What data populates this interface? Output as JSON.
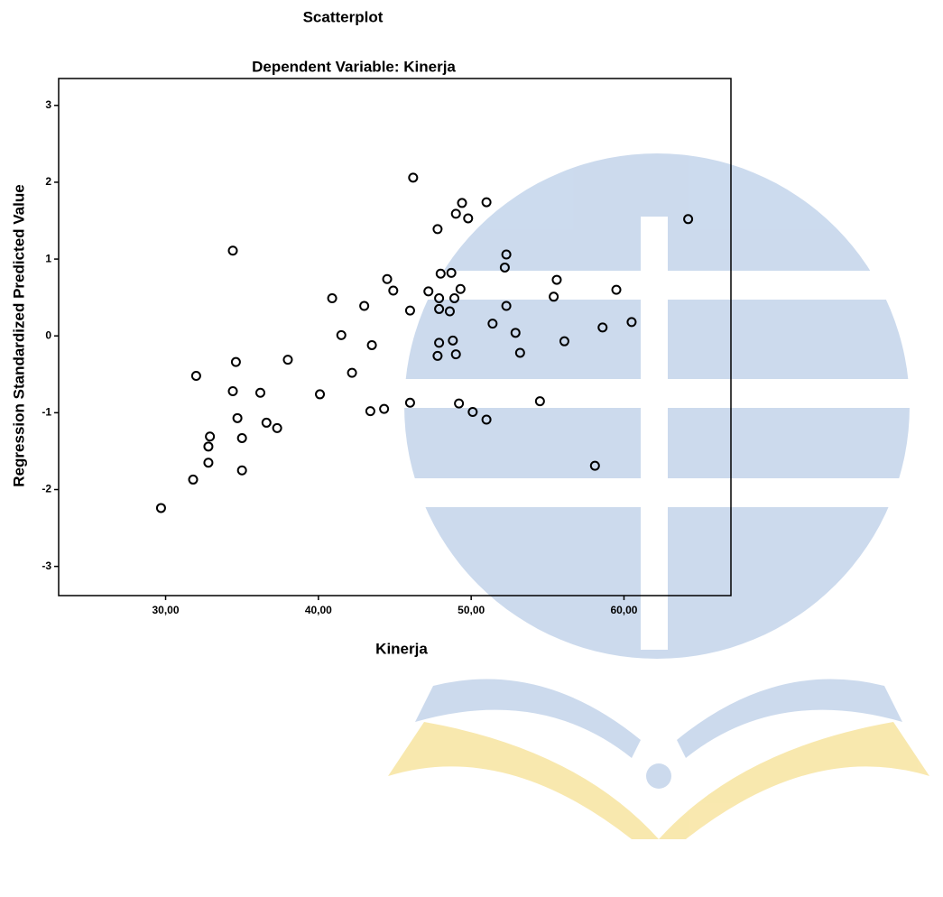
{
  "chart_data": {
    "type": "scatter",
    "title": "Scatterplot",
    "subtitle": "Dependent Variable: Kinerja",
    "x_label": "Kinerja",
    "y_label": "Regression Standardized Predicted Value",
    "color": "#000000",
    "x": [
      29.7,
      31.8,
      32.0,
      32.8,
      32.8,
      32.9,
      34.4,
      34.4,
      34.6,
      34.7,
      35.0,
      35.0,
      36.2,
      36.6,
      37.3,
      38.0,
      40.1,
      40.9,
      41.5,
      42.2,
      43.0,
      43.4,
      43.5,
      44.3,
      44.5,
      44.9,
      46.0,
      46.0,
      46.2,
      47.2,
      47.8,
      47.8,
      47.9,
      47.9,
      47.9,
      48.0,
      48.6,
      48.7,
      48.8,
      48.9,
      49.0,
      49.0,
      49.2,
      49.3,
      49.4,
      49.8,
      50.1,
      51.0,
      51.0,
      51.4,
      52.3,
      52.2,
      52.3,
      52.9,
      53.2,
      54.5,
      55.4,
      55.6,
      56.1,
      58.1,
      58.6,
      59.5,
      60.5,
      64.2
    ],
    "values": [
      -2.24,
      -1.87,
      -0.52,
      -1.65,
      -1.44,
      -1.31,
      1.11,
      -0.72,
      -0.34,
      -1.07,
      -1.33,
      -1.75,
      -0.74,
      -1.13,
      -1.2,
      -0.31,
      -0.76,
      0.49,
      0.01,
      -0.48,
      0.39,
      -0.98,
      -0.12,
      -0.95,
      0.74,
      0.59,
      0.33,
      -0.87,
      2.06,
      0.58,
      1.39,
      -0.26,
      0.35,
      -0.09,
      0.49,
      0.81,
      0.32,
      0.82,
      -0.06,
      0.49,
      1.59,
      -0.24,
      -0.88,
      0.61,
      1.73,
      1.53,
      -0.99,
      -1.09,
      1.74,
      0.16,
      1.06,
      0.89,
      0.39,
      0.04,
      -0.22,
      -0.85,
      0.51,
      0.73,
      -0.07,
      -1.69,
      0.11,
      0.6,
      0.18,
      1.52
    ],
    "xlim": [
      23,
      67
    ],
    "ylim": [
      -3.38,
      3.35
    ],
    "xticks": [
      {
        "value": 30,
        "label": "30,00"
      },
      {
        "value": 40,
        "label": "40,00"
      },
      {
        "value": 50,
        "label": "50,00"
      },
      {
        "value": 60,
        "label": "60,00"
      }
    ],
    "yticks": [
      -3,
      -2,
      -1,
      0,
      1,
      2,
      3
    ]
  }
}
